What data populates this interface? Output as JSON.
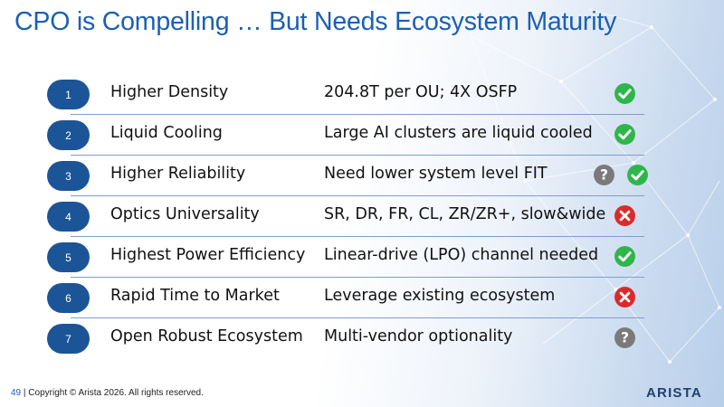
{
  "title": "CPO is Compelling … But Needs Ecosystem Maturity",
  "rows": [
    {
      "num": "1",
      "feature": "Higher Density",
      "detail": "204.8T per OU; 4X OSFP",
      "status": [
        "check"
      ]
    },
    {
      "num": "2",
      "feature": "Liquid Cooling",
      "detail": "Large AI clusters are liquid cooled",
      "status": [
        "check"
      ]
    },
    {
      "num": "3",
      "feature": "Higher Reliability",
      "detail": "Need lower system level FIT",
      "status": [
        "question",
        "check"
      ]
    },
    {
      "num": "4",
      "feature": "Optics Universality",
      "detail": "SR, DR, FR, CL, ZR/ZR+, slow&wide",
      "status": [
        "cross"
      ]
    },
    {
      "num": "5",
      "feature": "Highest Power Efficiency",
      "detail": "Linear-drive (LPO) channel needed",
      "status": [
        "check"
      ]
    },
    {
      "num": "6",
      "feature": "Rapid Time to Market",
      "detail": "Leverage existing ecosystem",
      "status": [
        "cross"
      ]
    },
    {
      "num": "7",
      "feature": "Open Robust Ecosystem",
      "detail": "Multi-vendor optionality",
      "status": [
        "question"
      ]
    }
  ],
  "footer": {
    "page": "49",
    "separator": "|",
    "copyright": "Copyright © Arista 2026. All rights reserved."
  },
  "logo": "ARISTA",
  "colors": {
    "title": "#1b5fb5",
    "badge": "#1c5498",
    "check": "#2fb64a",
    "cross": "#dc2a2a",
    "question": "#7a7a7a"
  }
}
